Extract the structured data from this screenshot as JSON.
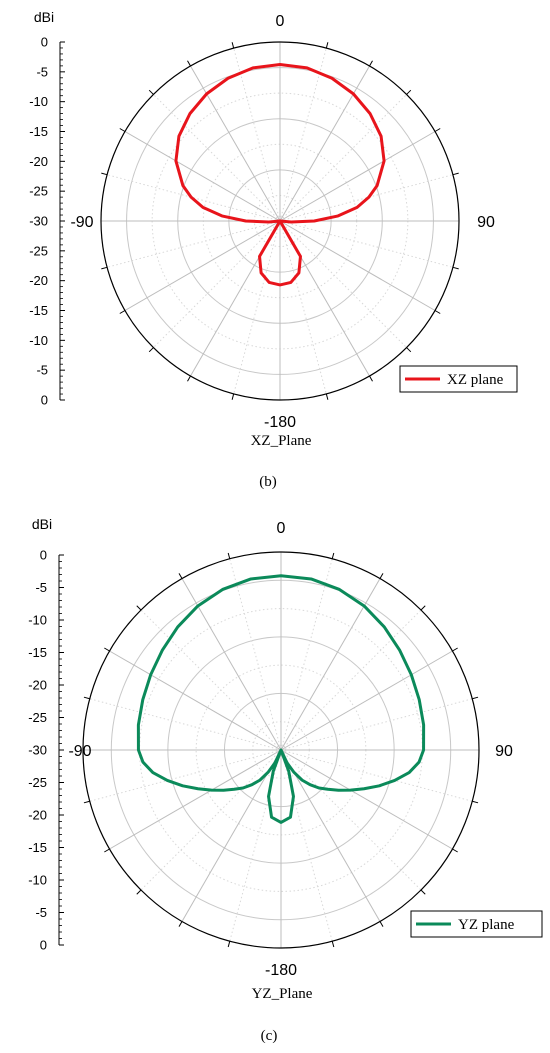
{
  "chart_data": [
    {
      "type": "polar-line",
      "unit_label": "dBi",
      "radial_ticks": [
        "0",
        "-5",
        "-10",
        "-15",
        "-20",
        "-25",
        "-30",
        "-25",
        "-20",
        "-15",
        "-10",
        "-5",
        "0"
      ],
      "angle_labels": {
        "top": "0",
        "left": "-90",
        "right": "90",
        "bottom": "-180"
      },
      "xlabel": "XZ_Plane",
      "caption": "(b)",
      "legend": "XZ plane",
      "color": "#e8141b",
      "series": [
        {
          "name": "XZ plane",
          "theta_deg": [
            -180,
            -170,
            -160,
            -150,
            -135,
            -120,
            -110,
            -100,
            -95,
            -90,
            -85,
            -80,
            -75,
            -70,
            -60,
            -50,
            -40,
            -30,
            -20,
            -10,
            0,
            10,
            20,
            30,
            40,
            50,
            60,
            70,
            75,
            80,
            85,
            90,
            95,
            100,
            110,
            120,
            135,
            150,
            160,
            170,
            180
          ],
          "gain_dbi": [
            -22.5,
            -22.8,
            -24.2,
            -27.0,
            -35,
            -35,
            -35,
            -35,
            -32.8,
            -28.3,
            -23.6,
            -19.7,
            -17.0,
            -14.8,
            -11.5,
            -9.2,
            -7.6,
            -6.3,
            -5.3,
            -4.6,
            -4.4,
            -4.6,
            -5.3,
            -6.3,
            -7.6,
            -9.2,
            -11.5,
            -14.8,
            -17.0,
            -19.7,
            -23.6,
            -28.3,
            -32.8,
            -35,
            -35,
            -35,
            -35,
            -27.0,
            -24.2,
            -22.8,
            -22.5
          ]
        }
      ]
    },
    {
      "type": "polar-line",
      "unit_label": "dBi",
      "radial_ticks": [
        "0",
        "-5",
        "-10",
        "-15",
        "-20",
        "-25",
        "-30",
        "-25",
        "-20",
        "-15",
        "-10",
        "-5",
        "0"
      ],
      "angle_labels": {
        "top": "0",
        "left": "-90",
        "right": "90",
        "bottom": "-180"
      },
      "xlabel": "YZ_Plane",
      "caption": "(c)",
      "legend": "YZ plane",
      "color": "#0b8a5a",
      "series": [
        {
          "name": "YZ plane",
          "theta_deg": [
            -180,
            -172,
            -165,
            -160,
            -158,
            -155,
            -150,
            -145,
            -140,
            -135,
            -130,
            -125,
            -120,
            -115,
            -110,
            -105,
            -100,
            -95,
            -90,
            -80,
            -70,
            -60,
            -50,
            -40,
            -30,
            -20,
            -10,
            0,
            10,
            20,
            30,
            40,
            50,
            60,
            70,
            80,
            90,
            95,
            100,
            105,
            110,
            115,
            120,
            125,
            130,
            135,
            140,
            145,
            150,
            155,
            158,
            160,
            165,
            172,
            180
          ],
          "gain_dbi": [
            -22.2,
            -23.0,
            -26.5,
            -31,
            -35,
            -32.5,
            -30.5,
            -28.5,
            -27.0,
            -25.5,
            -24.2,
            -22.6,
            -20.8,
            -18.8,
            -16.5,
            -14.2,
            -12.0,
            -10.5,
            -9.8,
            -9.4,
            -9.0,
            -8.4,
            -7.6,
            -6.6,
            -5.6,
            -4.8,
            -4.3,
            -4.2,
            -4.3,
            -4.8,
            -5.6,
            -6.6,
            -7.6,
            -8.4,
            -9.0,
            -9.4,
            -9.8,
            -10.5,
            -12.0,
            -14.2,
            -16.5,
            -18.8,
            -20.8,
            -22.6,
            -24.2,
            -25.5,
            -27.0,
            -28.5,
            -30.5,
            -32.5,
            -35,
            -31,
            -26.5,
            -23.0,
            -22.2
          ]
        }
      ]
    }
  ]
}
